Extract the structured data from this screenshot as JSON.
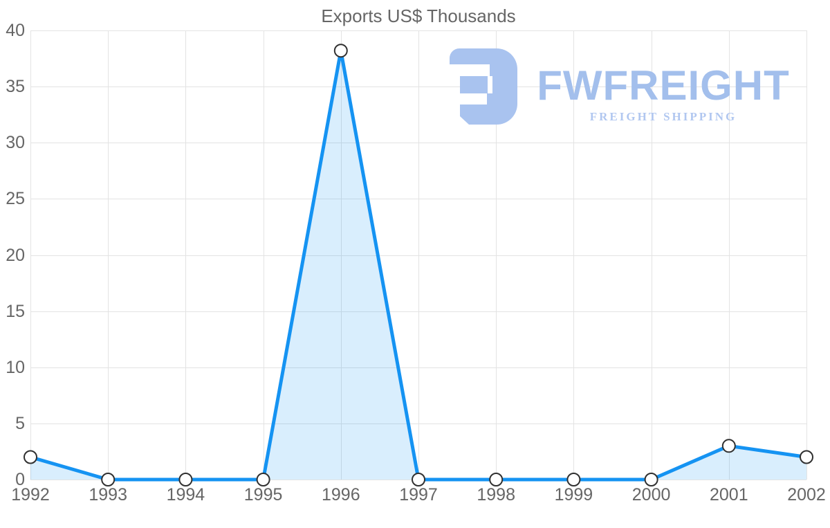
{
  "chart_data": {
    "type": "area",
    "title": "Exports US$ Thousands",
    "categories": [
      "1992",
      "1993",
      "1994",
      "1995",
      "1996",
      "1997",
      "1998",
      "1999",
      "2000",
      "2001",
      "2002"
    ],
    "values": [
      2,
      0,
      0,
      0,
      38.2,
      0,
      0,
      0,
      0,
      3,
      2
    ],
    "xlabel": "",
    "ylabel": "",
    "ylim": [
      0,
      40
    ],
    "yticks": [
      0,
      5,
      10,
      15,
      20,
      25,
      30,
      35,
      40
    ],
    "grid": true,
    "legend": false,
    "line_color": "#1593f2",
    "fill_color": "#1593f2",
    "fill_opacity": 0.16,
    "marker_style": "circle-white-dark-stroke",
    "gridline_color": "#e3e3e3",
    "label_color": "#666666"
  },
  "watermark": {
    "brand": "FWFREIGHT",
    "tagline": "FREIGHT SHIPPING",
    "mark_icon": "stylized-fw-monogram",
    "mark_color": "#a9c3ef",
    "brand_color": "#a3bfec",
    "tagline_color": "#b1c7f0"
  }
}
